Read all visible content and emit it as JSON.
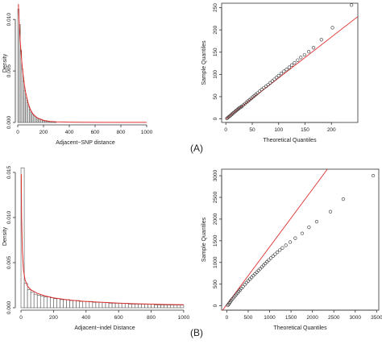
{
  "panel_labels": [
    "(A)",
    "(B)"
  ],
  "chart_data": [
    {
      "type": "histogram",
      "panel": "A-left",
      "xlabel": "Adjacent−SNP distance",
      "ylabel": "Density",
      "xlim": [
        0,
        1050
      ],
      "ylim": [
        0,
        0.0115
      ],
      "xticks": [
        0,
        200,
        400,
        600,
        800,
        1000
      ],
      "yticks": [
        0.0,
        0.005,
        0.01
      ],
      "ytick_labels": [
        "0.000",
        "0.005",
        "0.010"
      ],
      "bin_width": 10,
      "bins_start": 0,
      "bar_values": [
        0.011,
        0.0095,
        0.007,
        0.0052,
        0.004,
        0.0031,
        0.0024,
        0.0019,
        0.0015,
        0.0012,
        0.001,
        0.0008,
        0.0007,
        0.0006,
        0.0005,
        0.0004,
        0.00035,
        0.0003,
        0.00025,
        0.0002,
        0.00018,
        0.00015,
        0.00012,
        0.0001,
        9e-05,
        8e-05,
        7e-05,
        6e-05,
        5e-05,
        4e-05
      ],
      "density_curve": {
        "color": "#e03030",
        "x": [
          5,
          10,
          20,
          30,
          40,
          50,
          60,
          80,
          100,
          120,
          150,
          200,
          250,
          300,
          400,
          500,
          700,
          1000
        ],
        "y": [
          0.0115,
          0.01,
          0.0078,
          0.0061,
          0.0048,
          0.0038,
          0.003,
          0.0019,
          0.0012,
          0.0008,
          0.00045,
          0.0002,
          0.0001,
          6e-05,
          3e-05,
          2e-05,
          1e-05,
          5e-06
        ]
      }
    },
    {
      "type": "scatter",
      "panel": "A-right",
      "xlabel": "Theoretical Quantiles",
      "ylabel": "Sample Quantiles",
      "xlim": [
        -8,
        250
      ],
      "ylim": [
        -8,
        260
      ],
      "xticks": [
        0,
        50,
        100,
        150,
        200
      ],
      "yticks": [
        0,
        50,
        100,
        150,
        200,
        250
      ],
      "line": {
        "color": "#e03030",
        "x": [
          0,
          250
        ],
        "y": [
          0,
          230
        ]
      },
      "points": {
        "x": [
          2,
          4,
          6,
          8,
          10,
          12,
          14,
          16,
          18,
          20,
          22,
          24,
          26,
          28,
          30,
          33,
          36,
          39,
          42,
          45,
          48,
          51,
          54,
          57,
          60,
          64,
          68,
          72,
          76,
          80,
          84,
          88,
          92,
          96,
          100,
          105,
          110,
          115,
          120,
          125,
          130,
          136,
          142,
          149,
          157,
          166,
          181,
          202,
          238
        ],
        "y": [
          1,
          3,
          5,
          7,
          9,
          11,
          13,
          15,
          17,
          19,
          21,
          23,
          25,
          26,
          28,
          31,
          34,
          37,
          40,
          43,
          46,
          49,
          52,
          55,
          58,
          62,
          66,
          70,
          73,
          77,
          81,
          85,
          89,
          93,
          97,
          102,
          107,
          111,
          116,
          121,
          126,
          132,
          138,
          144,
          151,
          160,
          178,
          205,
          256
        ]
      }
    },
    {
      "type": "histogram",
      "panel": "B-left",
      "xlabel": "Adjacent−indel Distance",
      "ylabel": "Density",
      "xlim": [
        -20,
        1050
      ],
      "ylim": [
        0,
        0.0158
      ],
      "xticks": [
        0,
        200,
        400,
        600,
        800,
        1000
      ],
      "yticks": [
        0.0,
        0.005,
        0.01,
        0.015
      ],
      "ytick_labels": [
        "0.000",
        "0.005",
        "0.010",
        "0.015"
      ],
      "bin_width": 20,
      "bins_start": 0,
      "bar_values": [
        0.0155,
        0.0027,
        0.002,
        0.0017,
        0.0015,
        0.0014,
        0.0013,
        0.0012,
        0.0012,
        0.0011,
        0.001,
        0.001,
        0.0009,
        0.0009,
        0.0009,
        0.0008,
        0.0008,
        0.0008,
        0.0007,
        0.0007,
        0.0007,
        0.0007,
        0.0006,
        0.0006,
        0.0006,
        0.0006,
        0.0006,
        0.0005,
        0.0005,
        0.0005,
        0.0005,
        0.0005,
        0.0005,
        0.0004,
        0.0004,
        0.0004,
        0.0004,
        0.0004,
        0.0004,
        0.0004,
        0.0004,
        0.0003,
        0.0003,
        0.0003,
        0.0003,
        0.0003,
        0.0003,
        0.0003,
        0.0003,
        0.0003
      ],
      "density_curve": {
        "color": "#e03030",
        "x": [
          2,
          4,
          8,
          15,
          25,
          40,
          60,
          100,
          150,
          200,
          300,
          400,
          500,
          600,
          700,
          800,
          900,
          1000
        ],
        "y": [
          0.0148,
          0.01,
          0.0063,
          0.0042,
          0.0031,
          0.0024,
          0.002,
          0.0016,
          0.0013,
          0.0011,
          0.00085,
          0.0007,
          0.0006,
          0.00052,
          0.00045,
          0.0004,
          0.00036,
          0.00033
        ]
      }
    },
    {
      "type": "scatter",
      "panel": "B-right",
      "xlabel": "Theoretical Quantiles",
      "ylabel": "Sample Quantiles",
      "xlim": [
        -120,
        3550
      ],
      "ylim": [
        -100,
        3150
      ],
      "xticks": [
        0,
        500,
        1000,
        1500,
        2000,
        2500,
        3000,
        3500
      ],
      "yticks": [
        0,
        500,
        1000,
        1500,
        2000,
        2500,
        3000
      ],
      "line": {
        "color": "#e03030",
        "x": [
          -120,
          2350
        ],
        "y": [
          -130,
          3150
        ]
      },
      "points": {
        "x": [
          20,
          40,
          60,
          80,
          100,
          130,
          160,
          190,
          220,
          250,
          280,
          310,
          340,
          380,
          420,
          460,
          500,
          540,
          580,
          620,
          660,
          700,
          740,
          780,
          820,
          860,
          900,
          940,
          980,
          1030,
          1080,
          1130,
          1180,
          1240,
          1300,
          1380,
          1480,
          1600,
          1760,
          1920,
          2100,
          2420,
          2720,
          3420
        ],
        "y": [
          10,
          30,
          60,
          90,
          120,
          155,
          190,
          225,
          260,
          295,
          330,
          365,
          400,
          445,
          490,
          535,
          575,
          615,
          655,
          695,
          735,
          775,
          815,
          855,
          895,
          935,
          975,
          1015,
          1055,
          1100,
          1145,
          1190,
          1235,
          1285,
          1335,
          1395,
          1470,
          1560,
          1670,
          1810,
          1940,
          2170,
          2460,
          3000
        ]
      }
    }
  ]
}
